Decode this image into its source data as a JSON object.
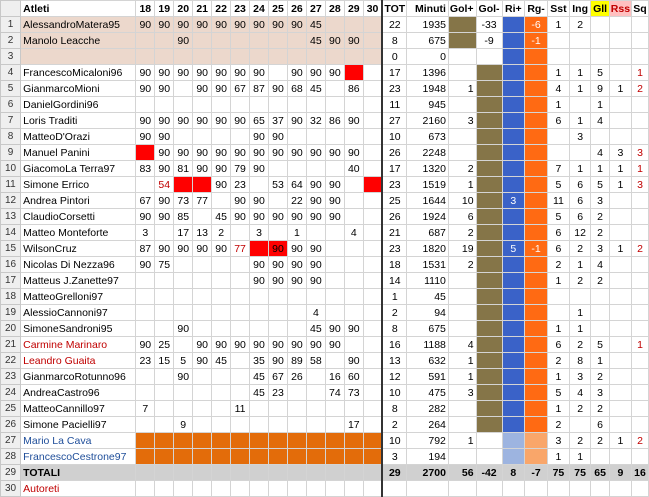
{
  "columns": [
    "Atleti",
    "18",
    "19",
    "20",
    "21",
    "22",
    "23",
    "24",
    "25",
    "26",
    "27",
    "28",
    "29",
    "30",
    "TOT",
    "Minuti",
    "Gol+",
    "Gol-",
    "Ri+",
    "Rg-",
    "Sst",
    "Ing",
    "Gll",
    "Rss",
    "Sq"
  ],
  "rows": [
    {
      "n": "1",
      "cells": [
        "AlessandroMatera95",
        "90",
        "90",
        "90",
        "90",
        "90",
        "90",
        "90",
        "90",
        "90",
        "45",
        "",
        "",
        "",
        "22",
        "1935",
        "",
        "-33",
        "",
        "-6",
        "1",
        "2",
        "",
        "",
        ""
      ]
    },
    {
      "n": "2",
      "cells": [
        "Manolo Leacche",
        "",
        "",
        "90",
        "",
        "",
        "",
        "",
        "",
        "",
        "45",
        "90",
        "90",
        "",
        "8",
        "675",
        "",
        "-9",
        "",
        "-1",
        "",
        "",
        "",
        "",
        ""
      ]
    },
    {
      "n": "3",
      "cells": [
        "",
        "",
        "",
        "",
        "",
        "",
        "",
        "",
        "",
        "",
        "",
        "",
        "",
        "",
        "0",
        "0",
        "",
        "",
        "",
        "",
        "",
        "",
        "",
        "",
        ""
      ]
    },
    {
      "n": "4",
      "cells": [
        "FrancescoMicaloni96",
        "90",
        "90",
        "90",
        "90",
        "90",
        "90",
        "90",
        "",
        "90",
        "90",
        "90",
        "",
        "",
        "17",
        "1396",
        "",
        "",
        "",
        "",
        "1",
        "1",
        "5",
        "",
        "1"
      ]
    },
    {
      "n": "5",
      "cells": [
        "GianmarcoMioni",
        "90",
        "90",
        "",
        "90",
        "90",
        "67",
        "87",
        "90",
        "68",
        "45",
        "",
        "86",
        "",
        "23",
        "1948",
        "1",
        "",
        "",
        "",
        "4",
        "1",
        "9",
        "1",
        "2"
      ]
    },
    {
      "n": "6",
      "cells": [
        "DanielGordini96",
        "",
        "",
        "",
        "",
        "",
        "",
        "",
        "",
        "",
        "",
        "",
        "",
        "",
        "11",
        "945",
        "",
        "",
        "",
        "",
        "1",
        "",
        "1",
        "",
        ""
      ]
    },
    {
      "n": "7",
      "cells": [
        "Loris Traditi",
        "90",
        "90",
        "90",
        "90",
        "90",
        "90",
        "65",
        "37",
        "90",
        "32",
        "86",
        "90",
        "",
        "27",
        "2160",
        "3",
        "",
        "",
        "",
        "6",
        "1",
        "4",
        "",
        ""
      ]
    },
    {
      "n": "8",
      "cells": [
        "MatteoD'Orazi",
        "90",
        "90",
        "",
        "",
        "",
        "",
        "90",
        "90",
        "",
        "",
        "",
        "",
        "",
        "10",
        "673",
        "",
        "",
        "",
        "",
        "",
        "3",
        "",
        "",
        ""
      ]
    },
    {
      "n": "9",
      "cells": [
        "Manuel Panini",
        "",
        "90",
        "90",
        "90",
        "90",
        "90",
        "90",
        "90",
        "90",
        "90",
        "90",
        "90",
        "",
        "26",
        "2248",
        "",
        "",
        "",
        "",
        "",
        "",
        "4",
        "3",
        "3"
      ]
    },
    {
      "n": "10",
      "cells": [
        "GiacomoLa Terra97",
        "83",
        "90",
        "81",
        "90",
        "90",
        "79",
        "90",
        "",
        "",
        "",
        "",
        "40",
        "",
        "17",
        "1320",
        "2",
        "",
        "",
        "",
        "7",
        "1",
        "1",
        "1",
        "1"
      ]
    },
    {
      "n": "11",
      "cells": [
        "Simone Errico",
        "",
        "54",
        "",
        "",
        "90",
        "23",
        "",
        "53",
        "64",
        "90",
        "90",
        "",
        "",
        "23",
        "1519",
        "1",
        "",
        "",
        "",
        "5",
        "6",
        "5",
        "1",
        "3"
      ]
    },
    {
      "n": "12",
      "cells": [
        "Andrea Pintori",
        "67",
        "90",
        "73",
        "77",
        "",
        "90",
        "90",
        "",
        "22",
        "90",
        "90",
        "",
        "",
        "25",
        "1644",
        "10",
        "",
        "3",
        "",
        "11",
        "6",
        "3",
        "",
        ""
      ]
    },
    {
      "n": "13",
      "cells": [
        "ClaudioCorsetti",
        "90",
        "90",
        "85",
        "",
        "45",
        "90",
        "90",
        "90",
        "90",
        "90",
        "90",
        "",
        "",
        "26",
        "1924",
        "6",
        "",
        "",
        "",
        "5",
        "6",
        "2",
        "",
        ""
      ]
    },
    {
      "n": "14",
      "cells": [
        "Matteo Monteforte",
        "3",
        "",
        "17",
        "13",
        "2",
        "",
        "3",
        "",
        "1",
        "",
        "",
        "4",
        "",
        "21",
        "687",
        "2",
        "",
        "",
        "",
        "6",
        "12",
        "2",
        "",
        ""
      ]
    },
    {
      "n": "15",
      "cells": [
        "WilsonCruz",
        "87",
        "90",
        "90",
        "90",
        "90",
        "77",
        "",
        "90",
        "90",
        "90",
        "",
        "",
        "",
        "23",
        "1820",
        "19",
        "",
        "5",
        "-1",
        "6",
        "2",
        "3",
        "1",
        "2"
      ]
    },
    {
      "n": "16",
      "cells": [
        "Nicolas Di Nezza96",
        "90",
        "75",
        "",
        "",
        "",
        "",
        "90",
        "90",
        "90",
        "90",
        "",
        "",
        "",
        "18",
        "1531",
        "2",
        "",
        "",
        "",
        "2",
        "1",
        "4",
        "",
        ""
      ]
    },
    {
      "n": "17",
      "cells": [
        "Matteus J.Zanette97",
        "",
        "",
        "",
        "",
        "",
        "",
        "90",
        "90",
        "90",
        "90",
        "",
        "",
        "",
        "14",
        "1110",
        "",
        "",
        "",
        "",
        "1",
        "2",
        "2",
        "",
        ""
      ]
    },
    {
      "n": "18",
      "cells": [
        "MatteoGrelloni97",
        "",
        "",
        "",
        "",
        "",
        "",
        "",
        "",
        "",
        "",
        "",
        "",
        "",
        "1",
        "45",
        "",
        "",
        "",
        "",
        "",
        "",
        "",
        "",
        ""
      ]
    },
    {
      "n": "19",
      "cells": [
        "AlessioCannoni97",
        "",
        "",
        "",
        "",
        "",
        "",
        "",
        "",
        "",
        "4",
        "",
        "",
        "",
        "2",
        "94",
        "",
        "",
        "",
        "",
        "",
        "1",
        "",
        "",
        ""
      ]
    },
    {
      "n": "20",
      "cells": [
        "SimoneSandroni95",
        "",
        "",
        "90",
        "",
        "",
        "",
        "",
        "",
        "",
        "45",
        "90",
        "90",
        "",
        "8",
        "675",
        "",
        "",
        "",
        "",
        "1",
        "1",
        "",
        "",
        ""
      ]
    },
    {
      "n": "21",
      "cells": [
        "Carmine Marinaro",
        "90",
        "25",
        "",
        "90",
        "90",
        "90",
        "90",
        "90",
        "90",
        "90",
        "90",
        "",
        "",
        "16",
        "1188",
        "4",
        "",
        "",
        "",
        "6",
        "2",
        "5",
        "",
        "1"
      ]
    },
    {
      "n": "22",
      "cells": [
        "Leandro Guaita",
        "23",
        "15",
        "5",
        "90",
        "45",
        "",
        "35",
        "90",
        "89",
        "58",
        "",
        "90",
        "",
        "13",
        "632",
        "1",
        "",
        "",
        "",
        "2",
        "8",
        "1",
        "",
        ""
      ]
    },
    {
      "n": "23",
      "cells": [
        "GianmarcoRotunno96",
        "",
        "",
        "90",
        "",
        "",
        "",
        "45",
        "67",
        "26",
        "",
        "16",
        "60",
        "",
        "12",
        "591",
        "1",
        "",
        "",
        "",
        "1",
        "3",
        "2",
        "",
        ""
      ]
    },
    {
      "n": "24",
      "cells": [
        "AndreaCastro96",
        "",
        "",
        "",
        "",
        "",
        "",
        "45",
        "23",
        "",
        "",
        "74",
        "73",
        "",
        "10",
        "475",
        "3",
        "",
        "",
        "",
        "5",
        "4",
        "3",
        "",
        ""
      ]
    },
    {
      "n": "25",
      "cells": [
        "MatteoCannillo97",
        "7",
        "",
        "",
        "",
        "",
        "11",
        "",
        "",
        "",
        "",
        "",
        "",
        "",
        "8",
        "282",
        "",
        "",
        "",
        "",
        "1",
        "2",
        "2",
        "",
        ""
      ]
    },
    {
      "n": "26",
      "cells": [
        "Simone Pacielli97",
        "",
        "",
        "9",
        "",
        "",
        "",
        "",
        "",
        "",
        "",
        "",
        "17",
        "",
        "2",
        "264",
        "",
        "",
        "",
        "",
        "2",
        "",
        "6",
        "",
        ""
      ]
    },
    {
      "n": "27",
      "cells": [
        "Mario La Cava",
        "",
        "",
        "",
        "",
        "",
        "",
        "",
        "",
        "",
        "",
        "",
        "",
        "",
        "10",
        "792",
        "1",
        "",
        "",
        "",
        "3",
        "2",
        "2",
        "1",
        "2"
      ]
    },
    {
      "n": "28",
      "cells": [
        "FrancescoCestrone97",
        "",
        "",
        "",
        "",
        "",
        "",
        "",
        "",
        "",
        "",
        "",
        "",
        "",
        "3",
        "194",
        "",
        "",
        "",
        "",
        "1",
        "1",
        "",
        "",
        ""
      ]
    },
    {
      "n": "29",
      "cells": [
        "TOTALI",
        "",
        "",
        "",
        "",
        "",
        "",
        "",
        "",
        "",
        "",
        "",
        "",
        "",
        "29",
        "2700",
        "56",
        "-42",
        "8",
        "-7",
        "75",
        "75",
        "65",
        "9",
        "16"
      ]
    },
    {
      "n": "30",
      "cells": [
        "Autoreti",
        "",
        "",
        "",
        "",
        "",
        "",
        "",
        "",
        "",
        "",
        "",
        "",
        "",
        "",
        "",
        "",
        "",
        "",
        "",
        "",
        "",
        "",
        "",
        ""
      ]
    }
  ],
  "colors": {
    "red": "#ff0000",
    "orange": "#e36c0a",
    "green": "#4e8b2a",
    "olive": "#857548",
    "blue": "#3a62c8"
  }
}
